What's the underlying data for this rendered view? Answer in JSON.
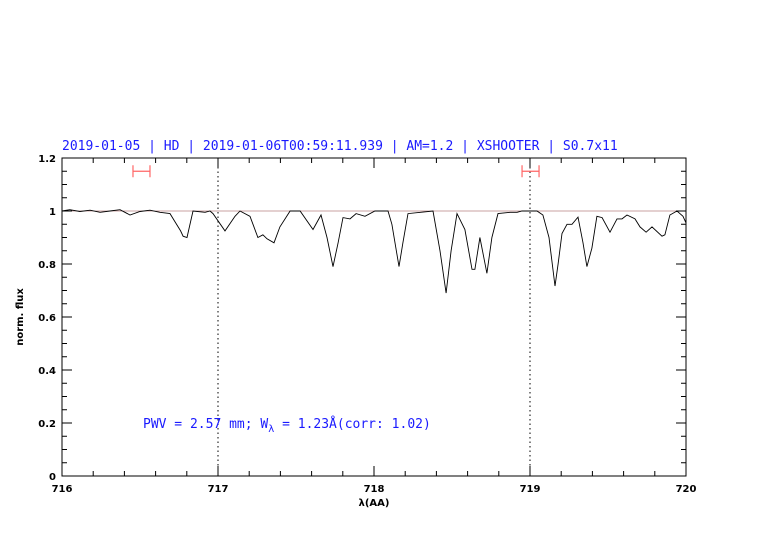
{
  "chart_data": {
    "type": "line",
    "title": "2019-01-05 | HD | 2019-01-06T00:59:11.939 | AM=1.2 | XSHOOTER | S0.7x11",
    "xlabel": "λ(AA)",
    "ylabel": "norm. flux",
    "xlim": [
      716,
      720
    ],
    "ylim": [
      0,
      1.2
    ],
    "x_ticks": [
      716,
      717,
      718,
      719,
      720
    ],
    "x_tick_labels": [
      "716",
      "717",
      "718",
      "719",
      "720"
    ],
    "y_ticks": [
      0,
      0.2,
      0.4,
      0.6,
      0.8,
      1,
      1.2
    ],
    "y_tick_labels": [
      "0",
      "0.2",
      "0.4",
      "0.6",
      "0.8",
      "1",
      "1.2"
    ],
    "grid": false,
    "annotation": {
      "pre": "PWV = 2.57 mm; W",
      "sub": "λ",
      "post": " = 1.23Å(corr: 1.02)"
    },
    "reference_line": {
      "y": 1.0,
      "color": "#c8a0a0"
    },
    "vertical_markers": [
      717,
      719
    ],
    "error_bars": [
      {
        "x_range": [
          716.455,
          716.564
        ],
        "y": 1.15
      },
      {
        "x_range": [
          718.949,
          719.058
        ],
        "y": 1.15
      }
    ],
    "colors": {
      "spectrum": "#000000",
      "title": "#1a1aff",
      "error_bar": "#ff6666"
    },
    "series": [
      {
        "x": [
          716.0,
          716.05,
          716.115,
          716.18,
          716.244,
          716.308,
          716.372,
          716.436,
          716.5,
          716.564,
          716.628,
          716.692,
          716.724,
          716.76,
          716.776,
          716.801,
          716.84,
          716.917,
          716.949,
          716.968,
          717.045,
          717.109,
          717.141,
          717.205,
          717.256,
          717.288,
          717.314,
          717.359,
          717.397,
          717.462,
          717.526,
          717.609,
          717.66,
          717.699,
          717.737,
          717.77,
          717.801,
          717.846,
          717.885,
          717.942,
          718.006,
          718.09,
          718.115,
          718.16,
          718.185,
          718.218,
          718.378,
          718.423,
          718.462,
          718.494,
          718.532,
          718.583,
          718.628,
          718.647,
          718.679,
          718.724,
          718.756,
          718.795,
          718.872,
          718.917,
          718.949,
          719.045,
          719.083,
          719.122,
          719.16,
          719.18,
          719.205,
          719.237,
          719.269,
          719.308,
          719.34,
          719.365,
          719.397,
          719.429,
          719.462,
          719.513,
          719.558,
          719.59,
          719.622,
          719.673,
          719.705,
          719.744,
          719.782,
          719.846,
          719.865,
          719.897,
          719.942,
          719.981,
          720.0
        ],
        "y": [
          1.0,
          1.005,
          0.998,
          1.003,
          0.995,
          1.0,
          1.005,
          0.985,
          0.998,
          1.003,
          0.995,
          0.99,
          0.96,
          0.925,
          0.905,
          0.9,
          1.0,
          0.995,
          1.0,
          0.99,
          0.925,
          0.98,
          1.0,
          0.98,
          0.9,
          0.91,
          0.895,
          0.88,
          0.94,
          1.0,
          1.0,
          0.93,
          0.985,
          0.9,
          0.79,
          0.88,
          0.975,
          0.97,
          0.99,
          0.98,
          1.0,
          1.0,
          0.95,
          0.79,
          0.88,
          0.99,
          1.0,
          0.85,
          0.69,
          0.85,
          0.99,
          0.93,
          0.78,
          0.78,
          0.9,
          0.765,
          0.9,
          0.99,
          0.995,
          0.995,
          1.0,
          1.0,
          0.985,
          0.9,
          0.717,
          0.8,
          0.915,
          0.95,
          0.95,
          0.977,
          0.88,
          0.79,
          0.86,
          0.98,
          0.975,
          0.92,
          0.97,
          0.97,
          0.985,
          0.97,
          0.94,
          0.92,
          0.94,
          0.905,
          0.91,
          0.985,
          1.0,
          0.98,
          0.955
        ]
      }
    ]
  }
}
